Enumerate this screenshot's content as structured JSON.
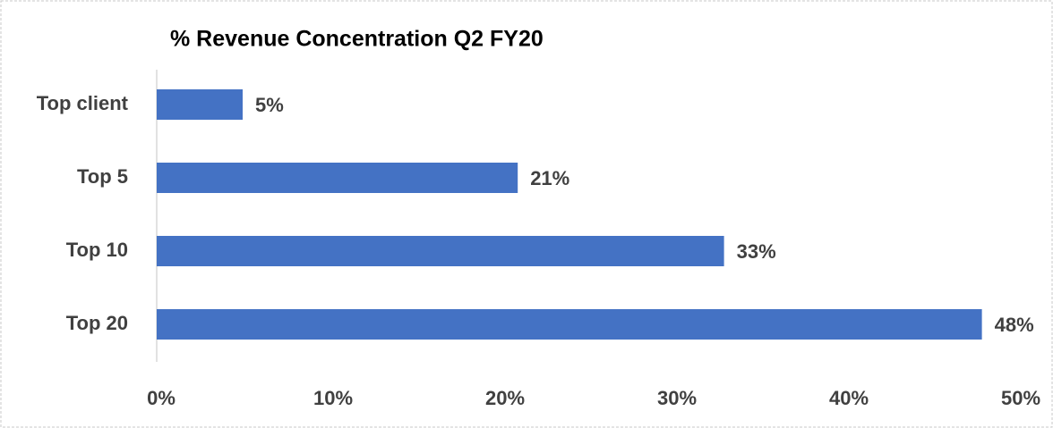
{
  "chart_data": {
    "type": "hbar",
    "title": "% Revenue Concentration Q2 FY20",
    "categories": [
      "Top client",
      "Top 5",
      "Top 10",
      "Top 20"
    ],
    "values": [
      5,
      21,
      33,
      48
    ],
    "value_labels": [
      "5%",
      "21%",
      "33%",
      "48%"
    ],
    "color": "#4472c4",
    "xlim": [
      0,
      50
    ],
    "xticks": [
      {
        "value": 0,
        "label": "0%"
      },
      {
        "value": 10,
        "label": "10%"
      },
      {
        "value": 20,
        "label": "20%"
      },
      {
        "value": 30,
        "label": "30%"
      },
      {
        "value": 40,
        "label": "40%"
      },
      {
        "value": 50,
        "label": "50%"
      }
    ],
    "grid": false
  }
}
